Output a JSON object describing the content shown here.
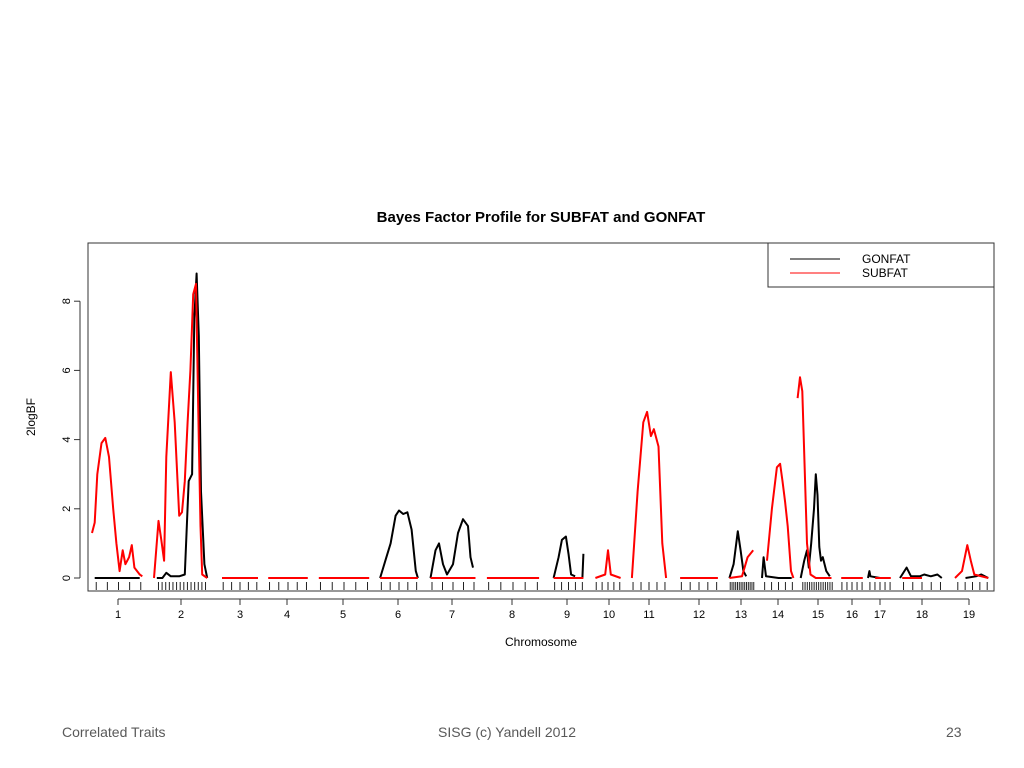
{
  "footer": {
    "left": "Correlated Traits",
    "center": "SISG (c) Yandell 2012",
    "page": "23"
  },
  "chart_data": {
    "type": "line",
    "title": "Bayes Factor Profile for SUBFAT and GONFAT",
    "xlabel": "Chromosome",
    "ylabel": "2logBF",
    "ylim": [
      -0.25,
      9.6
    ],
    "yticks": [
      0,
      2,
      4,
      6,
      8
    ],
    "grid": false,
    "legend_position": "top-right",
    "colors": {
      "GONFAT": "#000000",
      "SUBFAT": "#ff0000"
    },
    "chromosomes": [
      "1",
      "2",
      "3",
      "4",
      "5",
      "6",
      "7",
      "8",
      "9",
      "10",
      "11",
      "12",
      "13",
      "14",
      "15",
      "16",
      "17",
      "18",
      "19"
    ],
    "series": [
      {
        "name": "GONFAT",
        "color": "#000000",
        "segments": [
          [
            [
              "1",
              0.05,
              0
            ],
            [
              "1",
              0.9,
              0
            ]
          ],
          [
            [
              "2",
              0.05,
              0
            ],
            [
              "2",
              0.15,
              0
            ],
            [
              "2",
              0.22,
              0.15
            ],
            [
              "2",
              0.3,
              0.05
            ],
            [
              "2",
              0.45,
              0.05
            ],
            [
              "2",
              0.55,
              0.1
            ],
            [
              "2",
              0.62,
              2.8
            ],
            [
              "2",
              0.68,
              3.0
            ],
            [
              "2",
              0.72,
              7.5
            ],
            [
              "2",
              0.76,
              8.8
            ],
            [
              "2",
              0.8,
              7.0
            ],
            [
              "2",
              0.84,
              2.5
            ],
            [
              "2",
              0.9,
              0.4
            ],
            [
              "2",
              0.95,
              0
            ]
          ],
          [
            [
              "6",
              0.05,
              0
            ],
            [
              "6",
              0.2,
              0.6
            ],
            [
              "6",
              0.3,
              1.0
            ],
            [
              "6",
              0.42,
              1.8
            ],
            [
              "6",
              0.5,
              1.95
            ],
            [
              "6",
              0.6,
              1.85
            ],
            [
              "6",
              0.7,
              1.9
            ],
            [
              "6",
              0.8,
              1.4
            ],
            [
              "6",
              0.9,
              0.2
            ],
            [
              "6",
              0.95,
              0
            ]
          ],
          [
            [
              "7",
              0.05,
              0
            ],
            [
              "7",
              0.15,
              0.8
            ],
            [
              "7",
              0.22,
              1.0
            ],
            [
              "7",
              0.3,
              0.4
            ],
            [
              "7",
              0.38,
              0.1
            ],
            [
              "7",
              0.5,
              0.4
            ],
            [
              "7",
              0.6,
              1.3
            ],
            [
              "7",
              0.7,
              1.7
            ],
            [
              "7",
              0.8,
              1.5
            ],
            [
              "7",
              0.85,
              0.6
            ],
            [
              "7",
              0.9,
              0.3
            ]
          ],
          [
            [
              "9",
              0.05,
              0
            ],
            [
              "9",
              0.2,
              0.6
            ],
            [
              "9",
              0.3,
              1.1
            ],
            [
              "9",
              0.42,
              1.2
            ],
            [
              "9",
              0.5,
              0.7
            ],
            [
              "9",
              0.58,
              0.1
            ],
            [
              "9",
              0.7,
              0.05
            ]
          ],
          [
            [
              "9",
              0.92,
              0
            ],
            [
              "9",
              0.95,
              0.7
            ]
          ],
          [
            [
              "13",
              0.05,
              0
            ],
            [
              "13",
              0.2,
              0.4
            ],
            [
              "13",
              0.35,
              1.35
            ],
            [
              "13",
              0.45,
              0.8
            ],
            [
              "13",
              0.55,
              0.2
            ],
            [
              "13",
              0.65,
              0.05
            ]
          ],
          [
            [
              "14",
              0.0,
              0
            ],
            [
              "14",
              0.05,
              0.6
            ],
            [
              "14",
              0.12,
              0.05
            ],
            [
              "14",
              0.5,
              0
            ],
            [
              "14",
              0.9,
              0
            ]
          ],
          [
            [
              "15",
              0.02,
              0
            ],
            [
              "15",
              0.12,
              0.5
            ],
            [
              "15",
              0.2,
              0.8
            ],
            [
              "15",
              0.25,
              0.3
            ],
            [
              "15",
              0.32,
              1.0
            ],
            [
              "15",
              0.4,
              2.0
            ],
            [
              "15",
              0.45,
              3.0
            ],
            [
              "15",
              0.5,
              2.4
            ],
            [
              "15",
              0.55,
              0.9
            ],
            [
              "15",
              0.6,
              0.5
            ],
            [
              "15",
              0.65,
              0.6
            ],
            [
              "15",
              0.75,
              0.2
            ],
            [
              "15",
              0.85,
              0.05
            ]
          ],
          [
            [
              "17",
              0.0,
              0
            ],
            [
              "17",
              0.06,
              0.2
            ],
            [
              "17",
              0.1,
              0.05
            ],
            [
              "17",
              0.5,
              0
            ]
          ],
          [
            [
              "18",
              0.0,
              0
            ],
            [
              "18",
              0.15,
              0.3
            ],
            [
              "18",
              0.25,
              0.05
            ],
            [
              "18",
              0.45,
              0.05
            ],
            [
              "18",
              0.55,
              0.1
            ],
            [
              "18",
              0.7,
              0.05
            ],
            [
              "18",
              0.85,
              0.1
            ],
            [
              "18",
              0.95,
              0
            ]
          ],
          [
            [
              "19",
              0.3,
              0
            ],
            [
              "19",
              0.6,
              0.05
            ],
            [
              "19",
              0.75,
              0.1
            ],
            [
              "19",
              0.85,
              0.05
            ],
            [
              "19",
              0.95,
              0
            ]
          ]
        ]
      },
      {
        "name": "SUBFAT",
        "color": "#ff0000",
        "segments": [
          [
            [
              "1",
              0.0,
              1.3
            ],
            [
              "1",
              0.05,
              1.6
            ],
            [
              "1",
              0.1,
              3.0
            ],
            [
              "1",
              0.18,
              3.9
            ],
            [
              "1",
              0.25,
              4.05
            ],
            [
              "1",
              0.32,
              3.5
            ],
            [
              "1",
              0.4,
              2.0
            ],
            [
              "1",
              0.46,
              1.0
            ],
            [
              "1",
              0.52,
              0.2
            ],
            [
              "1",
              0.58,
              0.8
            ],
            [
              "1",
              0.63,
              0.4
            ],
            [
              "1",
              0.7,
              0.6
            ],
            [
              "1",
              0.75,
              0.95
            ],
            [
              "1",
              0.8,
              0.3
            ],
            [
              "1",
              0.85,
              0.2
            ],
            [
              "1",
              0.9,
              0.1
            ],
            [
              "1",
              0.95,
              0.05
            ]
          ],
          [
            [
              "2",
              0.0,
              0
            ],
            [
              "2",
              0.08,
              1.65
            ],
            [
              "2",
              0.13,
              1.1
            ],
            [
              "2",
              0.18,
              0.5
            ],
            [
              "2",
              0.22,
              3.5
            ],
            [
              "2",
              0.3,
              5.95
            ],
            [
              "2",
              0.37,
              4.5
            ],
            [
              "2",
              0.45,
              1.8
            ],
            [
              "2",
              0.5,
              1.9
            ],
            [
              "2",
              0.55,
              2.8
            ],
            [
              "2",
              0.6,
              4.5
            ],
            [
              "2",
              0.65,
              6.0
            ],
            [
              "2",
              0.7,
              8.2
            ],
            [
              "2",
              0.75,
              8.5
            ],
            [
              "2",
              0.8,
              4.0
            ],
            [
              "2",
              0.83,
              1.5
            ],
            [
              "2",
              0.86,
              0.1
            ],
            [
              "2",
              0.95,
              0
            ]
          ],
          [
            [
              "3",
              0.05,
              0
            ],
            [
              "3",
              0.95,
              0
            ]
          ],
          [
            [
              "4",
              0.05,
              0
            ],
            [
              "4",
              0.95,
              0
            ]
          ],
          [
            [
              "5",
              0.05,
              0
            ],
            [
              "5",
              0.95,
              0
            ]
          ],
          [
            [
              "6",
              0.05,
              0
            ],
            [
              "6",
              0.95,
              0
            ]
          ],
          [
            [
              "7",
              0.05,
              0
            ],
            [
              "7",
              0.95,
              0
            ]
          ],
          [
            [
              "8",
              0.05,
              0
            ],
            [
              "8",
              0.95,
              0
            ]
          ],
          [
            [
              "9",
              0.05,
              0
            ],
            [
              "9",
              0.95,
              0
            ]
          ],
          [
            [
              "10",
              0.05,
              0
            ],
            [
              "10",
              0.4,
              0.1
            ],
            [
              "10",
              0.5,
              0.8
            ],
            [
              "10",
              0.6,
              0.1
            ],
            [
              "10",
              0.95,
              0
            ]
          ],
          [
            [
              "11",
              0.05,
              0
            ],
            [
              "11",
              0.2,
              2.5
            ],
            [
              "11",
              0.35,
              4.5
            ],
            [
              "11",
              0.45,
              4.8
            ],
            [
              "11",
              0.55,
              4.1
            ],
            [
              "11",
              0.63,
              4.3
            ],
            [
              "11",
              0.75,
              3.8
            ],
            [
              "11",
              0.85,
              1.0
            ],
            [
              "11",
              0.95,
              0
            ]
          ],
          [
            [
              "12",
              0.05,
              0
            ],
            [
              "12",
              0.95,
              0
            ]
          ],
          [
            [
              "13",
              0.05,
              0
            ],
            [
              "13",
              0.5,
              0.05
            ],
            [
              "13",
              0.7,
              0.6
            ],
            [
              "13",
              0.9,
              0.8
            ]
          ],
          [
            [
              "14",
              0.15,
              0.5
            ],
            [
              "14",
              0.3,
              2.0
            ],
            [
              "14",
              0.45,
              3.2
            ],
            [
              "14",
              0.55,
              3.3
            ],
            [
              "14",
              0.62,
              2.8
            ],
            [
              "14",
              0.7,
              2.2
            ],
            [
              "14",
              0.78,
              1.5
            ],
            [
              "14",
              0.88,
              0.2
            ],
            [
              "14",
              0.95,
              0
            ]
          ],
          [
            [
              "14",
              1.08,
              5.2
            ],
            [
              "14",
              1.15,
              5.8
            ],
            [
              "14",
              1.22,
              5.4
            ],
            [
              "15",
              0.2,
              1.0
            ],
            [
              "15",
              0.3,
              0.1
            ],
            [
              "15",
              0.45,
              0
            ],
            [
              "15",
              0.9,
              0
            ]
          ],
          [
            [
              "16",
              0.05,
              0
            ],
            [
              "16",
              0.95,
              0
            ]
          ],
          [
            [
              "17",
              0.3,
              0
            ],
            [
              "17",
              0.95,
              0
            ]
          ],
          [
            [
              "18",
              0.05,
              0
            ],
            [
              "18",
              0.5,
              0
            ]
          ],
          [
            [
              "19",
              0.0,
              0
            ],
            [
              "19",
              0.2,
              0.2
            ],
            [
              "19",
              0.35,
              0.95
            ],
            [
              "19",
              0.45,
              0.5
            ],
            [
              "19",
              0.55,
              0.1
            ],
            [
              "19",
              0.95,
              0
            ]
          ]
        ]
      }
    ]
  }
}
